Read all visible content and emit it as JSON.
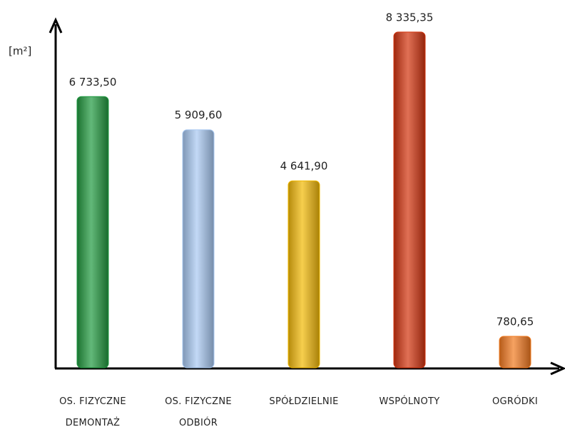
{
  "chart_data": {
    "type": "bar",
    "y_label": "[m²]",
    "categories": [
      "OS. FIZYCZNE\nDEMONTAŻ",
      "OS. FIZYCZNE\nODBIÓR",
      "SPÓŁDZIELNIE",
      "WSPÓLNOTY",
      "OGRÓDKI"
    ],
    "values": [
      6733.5,
      5909.6,
      4641.9,
      8335.35,
      780.65
    ],
    "value_labels": [
      "6 733,50",
      "5 909,60",
      "4 641,90",
      "8 335,35",
      "780,65"
    ],
    "colors": [
      "#1f9a40",
      "#a9c9f2",
      "#f2b900",
      "#d3330c",
      "#f27a1e"
    ],
    "ylim": [
      0,
      8600
    ]
  }
}
